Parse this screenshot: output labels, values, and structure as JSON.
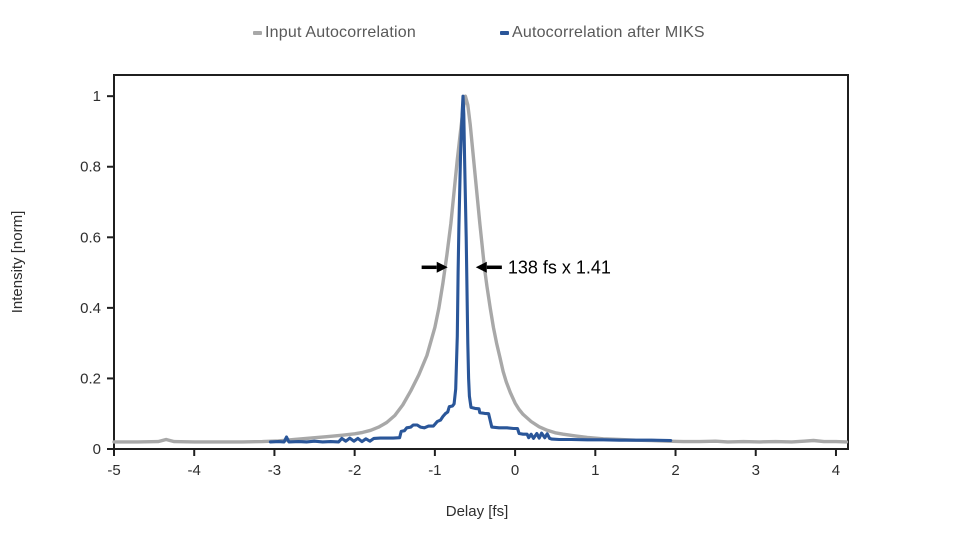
{
  "page": {
    "background": "#ffffff"
  },
  "legend": {
    "items": [
      {
        "label": "Input Autocorrelation",
        "color": "#a8a8a8"
      },
      {
        "label": "Autocorrelation after MIKS",
        "color": "#2a5699"
      }
    ]
  },
  "chart_data": {
    "type": "line",
    "title": "",
    "xlabel": "Delay [fs]",
    "ylabel": "Intensity [norm]",
    "xlim": [
      -5,
      4.15
    ],
    "ylim": [
      0,
      1.06
    ],
    "xticks": [
      -5,
      -4,
      -3,
      -2,
      -1,
      0,
      1,
      2,
      3,
      4
    ],
    "yticks": [
      0,
      0.2,
      0.4,
      0.6,
      0.8,
      1
    ],
    "grid": false,
    "legend_position": "top",
    "axis_color": "#1f1f1f",
    "tick_color": "#2e2e2e",
    "series": [
      {
        "name": "Input Autocorrelation",
        "color": "#a8a8a8",
        "width": 3.4,
        "points": [
          [
            -5,
            0.02
          ],
          [
            -4.7,
            0.02
          ],
          [
            -4.45,
            0.021
          ],
          [
            -4.35,
            0.027
          ],
          [
            -4.25,
            0.021
          ],
          [
            -4,
            0.02
          ],
          [
            -3.7,
            0.02
          ],
          [
            -3.4,
            0.02
          ],
          [
            -3.15,
            0.021
          ],
          [
            -2.95,
            0.023
          ],
          [
            -2.75,
            0.027
          ],
          [
            -2.55,
            0.031
          ],
          [
            -2.35,
            0.035
          ],
          [
            -2.15,
            0.039
          ],
          [
            -2,
            0.043
          ],
          [
            -1.9,
            0.047
          ],
          [
            -1.8,
            0.053
          ],
          [
            -1.7,
            0.062
          ],
          [
            -1.6,
            0.075
          ],
          [
            -1.5,
            0.095
          ],
          [
            -1.4,
            0.125
          ],
          [
            -1.3,
            0.165
          ],
          [
            -1.2,
            0.21
          ],
          [
            -1.1,
            0.265
          ],
          [
            -1,
            0.345
          ],
          [
            -0.95,
            0.4
          ],
          [
            -0.9,
            0.47
          ],
          [
            -0.85,
            0.55
          ],
          [
            -0.8,
            0.64
          ],
          [
            -0.76,
            0.73
          ],
          [
            -0.72,
            0.82
          ],
          [
            -0.68,
            0.9
          ],
          [
            -0.65,
            0.96
          ],
          [
            -0.62,
            1
          ],
          [
            -0.59,
            0.975
          ],
          [
            -0.56,
            0.92
          ],
          [
            -0.53,
            0.85
          ],
          [
            -0.5,
            0.78
          ],
          [
            -0.47,
            0.71
          ],
          [
            -0.44,
            0.64
          ],
          [
            -0.41,
            0.575
          ],
          [
            -0.38,
            0.51
          ],
          [
            -0.35,
            0.46
          ],
          [
            -0.31,
            0.4
          ],
          [
            -0.27,
            0.345
          ],
          [
            -0.23,
            0.3
          ],
          [
            -0.19,
            0.26
          ],
          [
            -0.15,
            0.22
          ],
          [
            -0.11,
            0.19
          ],
          [
            -0.06,
            0.16
          ],
          [
            0,
            0.13
          ],
          [
            0.05,
            0.112
          ],
          [
            0.1,
            0.098
          ],
          [
            0.2,
            0.078
          ],
          [
            0.3,
            0.063
          ],
          [
            0.4,
            0.053
          ],
          [
            0.5,
            0.046
          ],
          [
            0.6,
            0.042
          ],
          [
            0.75,
            0.037
          ],
          [
            0.9,
            0.033
          ],
          [
            1.1,
            0.029
          ],
          [
            1.3,
            0.027
          ],
          [
            1.5,
            0.025
          ],
          [
            1.7,
            0.024
          ],
          [
            1.9,
            0.022
          ],
          [
            2.1,
            0.021
          ],
          [
            2.3,
            0.021
          ],
          [
            2.5,
            0.022
          ],
          [
            2.65,
            0.02
          ],
          [
            2.85,
            0.021
          ],
          [
            3.05,
            0.02
          ],
          [
            3.25,
            0.021
          ],
          [
            3.45,
            0.02
          ],
          [
            3.6,
            0.022
          ],
          [
            3.72,
            0.024
          ],
          [
            3.85,
            0.021
          ],
          [
            4,
            0.021
          ],
          [
            4.13,
            0.02
          ]
        ]
      },
      {
        "name": "Autocorrelation after MIKS",
        "color": "#2a5699",
        "width": 3.1,
        "points": [
          [
            -3.05,
            0.02
          ],
          [
            -2.95,
            0.021
          ],
          [
            -2.88,
            0.02
          ],
          [
            -2.85,
            0.034
          ],
          [
            -2.82,
            0.02
          ],
          [
            -2.7,
            0.021
          ],
          [
            -2.6,
            0.02
          ],
          [
            -2.5,
            0.022
          ],
          [
            -2.4,
            0.02
          ],
          [
            -2.3,
            0.021
          ],
          [
            -2.2,
            0.02
          ],
          [
            -2.16,
            0.03
          ],
          [
            -2.11,
            0.022
          ],
          [
            -2.06,
            0.031
          ],
          [
            -2.01,
            0.022
          ],
          [
            -1.96,
            0.03
          ],
          [
            -1.91,
            0.021
          ],
          [
            -1.86,
            0.029
          ],
          [
            -1.81,
            0.022
          ],
          [
            -1.76,
            0.03
          ],
          [
            -1.68,
            0.031
          ],
          [
            -1.6,
            0.031
          ],
          [
            -1.52,
            0.031
          ],
          [
            -1.44,
            0.032
          ],
          [
            -1.42,
            0.05
          ],
          [
            -1.38,
            0.052
          ],
          [
            -1.35,
            0.06
          ],
          [
            -1.3,
            0.062
          ],
          [
            -1.27,
            0.068
          ],
          [
            -1.22,
            0.068
          ],
          [
            -1.18,
            0.062
          ],
          [
            -1.13,
            0.06
          ],
          [
            -1.08,
            0.065
          ],
          [
            -1.02,
            0.065
          ],
          [
            -0.97,
            0.078
          ],
          [
            -0.93,
            0.082
          ],
          [
            -0.9,
            0.092
          ],
          [
            -0.87,
            0.1
          ],
          [
            -0.84,
            0.105
          ],
          [
            -0.82,
            0.12
          ],
          [
            -0.78,
            0.122
          ],
          [
            -0.76,
            0.128
          ],
          [
            -0.74,
            0.17
          ],
          [
            -0.72,
            0.32
          ],
          [
            -0.71,
            0.5
          ],
          [
            -0.7,
            0.63
          ],
          [
            -0.68,
            0.83
          ],
          [
            -0.66,
            0.95
          ],
          [
            -0.65,
            1
          ],
          [
            -0.64,
            0.95
          ],
          [
            -0.63,
            0.82
          ],
          [
            -0.61,
            0.6
          ],
          [
            -0.6,
            0.45
          ],
          [
            -0.59,
            0.3
          ],
          [
            -0.58,
            0.2
          ],
          [
            -0.57,
            0.15
          ],
          [
            -0.55,
            0.118
          ],
          [
            -0.5,
            0.115
          ],
          [
            -0.45,
            0.114
          ],
          [
            -0.44,
            0.103
          ],
          [
            -0.38,
            0.101
          ],
          [
            -0.33,
            0.1
          ],
          [
            -0.29,
            0.062
          ],
          [
            -0.2,
            0.06
          ],
          [
            -0.1,
            0.06
          ],
          [
            -0.02,
            0.058
          ],
          [
            0.03,
            0.058
          ],
          [
            0.05,
            0.044
          ],
          [
            0.1,
            0.042
          ],
          [
            0.15,
            0.042
          ],
          [
            0.17,
            0.032
          ],
          [
            0.2,
            0.042
          ],
          [
            0.23,
            0.03
          ],
          [
            0.27,
            0.044
          ],
          [
            0.3,
            0.031
          ],
          [
            0.33,
            0.045
          ],
          [
            0.37,
            0.032
          ],
          [
            0.4,
            0.043
          ],
          [
            0.43,
            0.03
          ],
          [
            0.46,
            0.028
          ],
          [
            0.55,
            0.027
          ],
          [
            0.7,
            0.027
          ],
          [
            0.9,
            0.026
          ],
          [
            1.1,
            0.026
          ],
          [
            1.3,
            0.025
          ],
          [
            1.5,
            0.025
          ],
          [
            1.7,
            0.025
          ],
          [
            1.94,
            0.024
          ]
        ]
      }
    ],
    "annotation": {
      "text": "138 fs x 1.41",
      "color": "#000000",
      "y": 0.515,
      "text_x": -0.09,
      "arrows": [
        {
          "x_tail": -1.165,
          "x_tip": -0.84
        },
        {
          "x_tail": -0.165,
          "x_tip": -0.49
        }
      ]
    }
  }
}
